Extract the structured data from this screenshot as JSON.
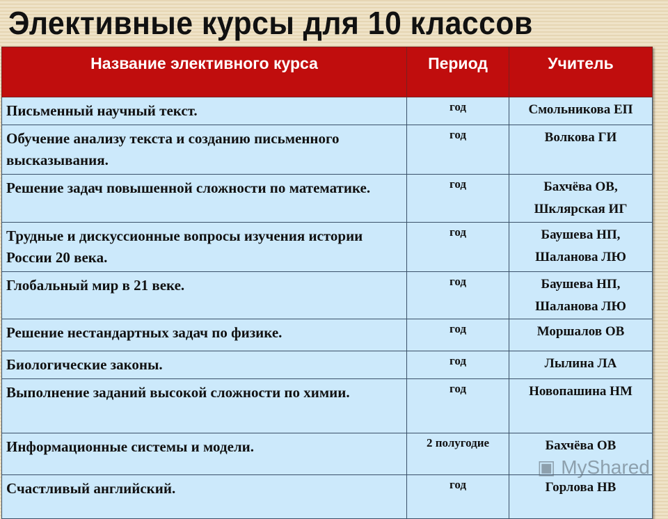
{
  "title": "Элективные курсы для 10 классов",
  "table": {
    "headers": [
      "Название элективного курса",
      "Период",
      "Учитель"
    ],
    "rows": [
      {
        "name": "Письменный научный текст.",
        "period": "год",
        "teacher": "Смольникова ЕП"
      },
      {
        "name": "Обучение анализу текста и созданию письменного высказывания.",
        "period": "год",
        "teacher": "Волкова ГИ"
      },
      {
        "name": "Решение задач повышенной сложности по математике.",
        "period": "год",
        "teacher": "Бахчёва ОВ, Шклярская ИГ"
      },
      {
        "name": "Трудные и дискуссионные вопросы изучения истории России 20 века.",
        "period": "год",
        "teacher": "Баушева НП, Шаланова ЛЮ"
      },
      {
        "name": "Глобальный мир в 21 веке.",
        "period": "год",
        "teacher": "Баушева НП, Шаланова ЛЮ"
      },
      {
        "name": "Решение нестандартных задач по физике.",
        "period": "год",
        "teacher": "Моршалов ОВ"
      },
      {
        "name": "Биологические законы.",
        "period": "год",
        "teacher": "Лылина ЛА"
      },
      {
        "name": "Выполнение заданий высокой сложности по химии.",
        "period": "год",
        "teacher": "Новопашина НМ"
      },
      {
        "name": "Информационные системы и модели.",
        "period": "2 полугодие",
        "teacher": "Бахчёва ОВ"
      },
      {
        "name": "Счастливый английский.",
        "period": "год",
        "teacher": "Горлова НВ"
      }
    ]
  },
  "watermark": "MyShared",
  "colors": {
    "header": "#c00d0d",
    "cell": "#cce9fb"
  }
}
